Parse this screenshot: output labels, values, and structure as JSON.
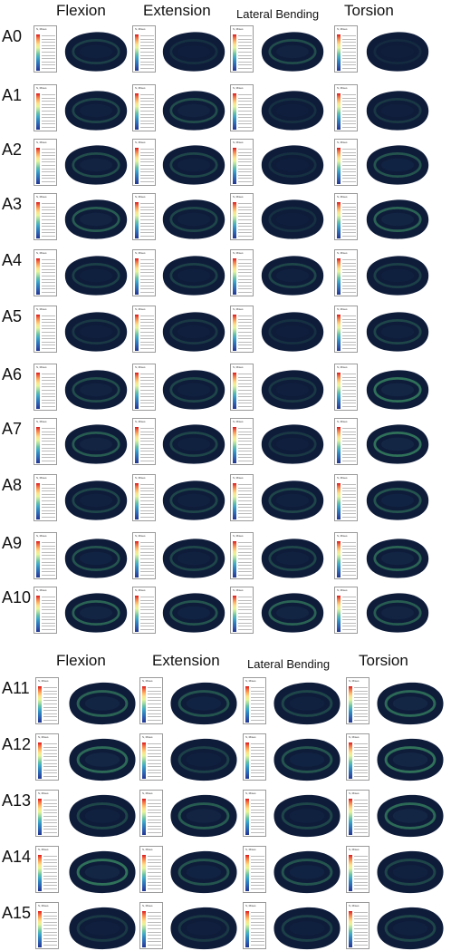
{
  "headers_top": [
    "Flexion",
    "Extension",
    "Lateral Bending",
    "Torsion"
  ],
  "headers_bottom": [
    "Flexion",
    "Extension",
    "Lateral Bending",
    "Torsion"
  ],
  "legend_title": "S, Mises",
  "rows": [
    {
      "label": "A0",
      "glow": [
        0.25,
        0.15,
        0.35,
        0.1
      ]
    },
    {
      "label": "A1",
      "glow": [
        0.3,
        0.35,
        0.15,
        0.2
      ]
    },
    {
      "label": "A2",
      "glow": [
        0.35,
        0.3,
        0.15,
        0.4
      ]
    },
    {
      "label": "A3",
      "glow": [
        0.45,
        0.3,
        0.15,
        0.5
      ]
    },
    {
      "label": "A4",
      "glow": [
        0.25,
        0.25,
        0.3,
        0.25
      ]
    },
    {
      "label": "A5",
      "glow": [
        0.2,
        0.2,
        0.15,
        0.3
      ]
    },
    {
      "label": "A6",
      "glow": [
        0.35,
        0.3,
        0.2,
        0.6
      ]
    },
    {
      "label": "A7",
      "glow": [
        0.45,
        0.3,
        0.2,
        0.6
      ]
    },
    {
      "label": "A8",
      "glow": [
        0.3,
        0.3,
        0.3,
        0.4
      ]
    },
    {
      "label": "A9",
      "glow": [
        0.4,
        0.3,
        0.3,
        0.5
      ]
    },
    {
      "label": "A10",
      "glow": [
        0.5,
        0.4,
        0.5,
        0.45
      ]
    },
    {
      "label": "A11",
      "glow": [
        0.5,
        0.4,
        0.3,
        0.55
      ]
    },
    {
      "label": "A12",
      "glow": [
        0.55,
        0.25,
        0.4,
        0.6
      ]
    },
    {
      "label": "A13",
      "glow": [
        0.3,
        0.45,
        0.3,
        0.55
      ]
    },
    {
      "label": "A14",
      "glow": [
        0.6,
        0.4,
        0.4,
        0.3
      ]
    },
    {
      "label": "A15",
      "glow": [
        0.2,
        0.2,
        0.25,
        0.3
      ]
    }
  ]
}
